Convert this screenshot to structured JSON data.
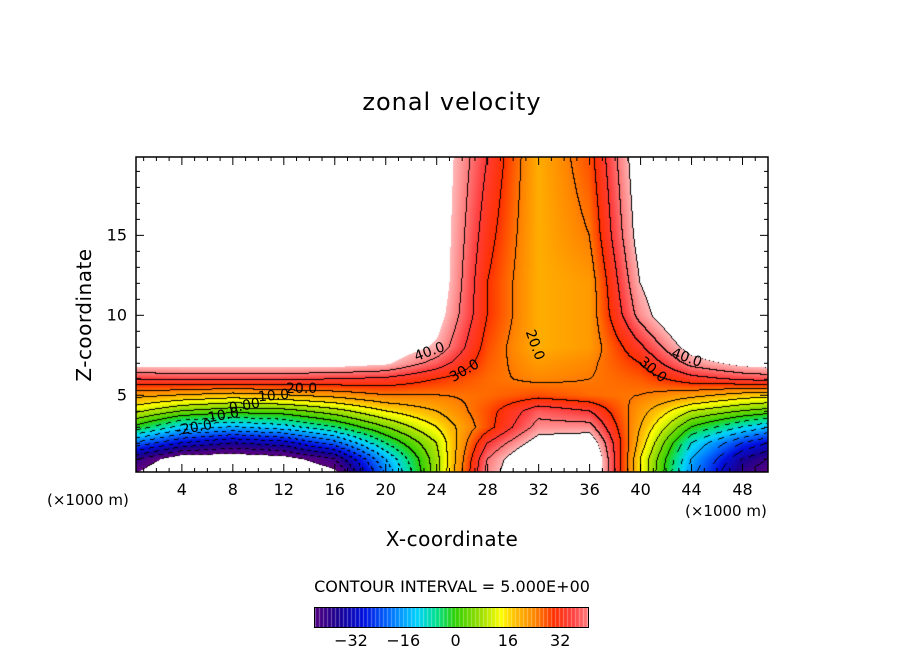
{
  "chart_data": {
    "type": "heatmap",
    "title": "zonal velocity",
    "xlabel": "X-coordinate",
    "ylabel": "Z-coordinate",
    "x_unit": "(×1000 m)",
    "xlim": [
      0.4,
      50
    ],
    "ylim": [
      0.2,
      19.9
    ],
    "xticks": [
      4,
      8,
      12,
      16,
      20,
      24,
      28,
      32,
      36,
      40,
      44,
      48
    ],
    "yticks": [
      5,
      10,
      15
    ],
    "contour_interval_text": "CONTOUR INTERVAL = 5.000E+00",
    "colorbar": {
      "range": [
        -43,
        40.5
      ],
      "ticks": [
        -32,
        -16,
        0,
        16,
        32
      ],
      "tick_labels": [
        "−32",
        "−16",
        "0",
        "16",
        "32"
      ]
    },
    "contour_labels": [
      "40.0",
      "30.0",
      "20.0",
      "40.0",
      "30.0",
      "20.0",
      "10.0",
      "0.00",
      "-10.0",
      "-20.0"
    ],
    "grid_x": [
      0,
      4,
      8,
      12,
      16,
      20,
      24,
      28,
      32,
      36,
      40,
      44,
      48,
      50
    ],
    "grid_z": [
      0,
      1,
      2,
      3,
      4,
      5,
      6,
      7,
      8,
      10,
      12,
      15,
      20
    ],
    "values": [
      [
        -45,
        -55,
        -55,
        -55,
        -48,
        -20,
        8,
        42,
        55,
        55,
        15,
        -18,
        -40,
        -45
      ],
      [
        -38,
        -50,
        -50,
        -48,
        -40,
        -15,
        8,
        40,
        55,
        55,
        15,
        -15,
        -35,
        -40
      ],
      [
        -20,
        -30,
        -35,
        -32,
        -22,
        -5,
        10,
        35,
        48,
        50,
        18,
        -10,
        -25,
        -30
      ],
      [
        0,
        -12,
        -15,
        -12,
        -5,
        5,
        15,
        28,
        42,
        42,
        20,
        0,
        -10,
        -14
      ],
      [
        12,
        5,
        2,
        3,
        8,
        15,
        20,
        28,
        38,
        35,
        22,
        10,
        5,
        3
      ],
      [
        22,
        20,
        18,
        20,
        22,
        25,
        25,
        26,
        28,
        26,
        25,
        22,
        18,
        17
      ],
      [
        35,
        36,
        36,
        36,
        35,
        34,
        30,
        26,
        24,
        25,
        27,
        33,
        36,
        37
      ],
      [
        48,
        48,
        48,
        48,
        48,
        46,
        38,
        27,
        22,
        24,
        30,
        42,
        47,
        48
      ],
      [
        55,
        55,
        55,
        55,
        55,
        50,
        44,
        28,
        20,
        22,
        34,
        48,
        55,
        55
      ],
      [
        55,
        55,
        55,
        55,
        55,
        55,
        48,
        30,
        20,
        22,
        42,
        55,
        55,
        55
      ],
      [
        55,
        55,
        55,
        55,
        55,
        55,
        50,
        30,
        20,
        22,
        45,
        55,
        55,
        55
      ],
      [
        55,
        55,
        55,
        55,
        55,
        55,
        50,
        32,
        20,
        25,
        48,
        55,
        55,
        55
      ],
      [
        55,
        55,
        55,
        55,
        55,
        55,
        50,
        35,
        20,
        28,
        50,
        55,
        55,
        55
      ]
    ],
    "colors": {
      "stops": [
        [
          -44,
          "#5a0080"
        ],
        [
          -36,
          "#1a0090"
        ],
        [
          -28,
          "#0010e0"
        ],
        [
          -20,
          "#0070ff"
        ],
        [
          -12,
          "#00d0ff"
        ],
        [
          -6,
          "#00e090"
        ],
        [
          0,
          "#30d000"
        ],
        [
          8,
          "#a0e000"
        ],
        [
          14,
          "#ffff00"
        ],
        [
          18,
          "#ffc000"
        ],
        [
          24,
          "#ff8800"
        ],
        [
          30,
          "#ff3000"
        ],
        [
          36,
          "#ff4040"
        ],
        [
          42,
          "#ff9090"
        ],
        [
          45,
          "#ffb8b8"
        ]
      ],
      "out_of_range": "#ffffff"
    }
  }
}
